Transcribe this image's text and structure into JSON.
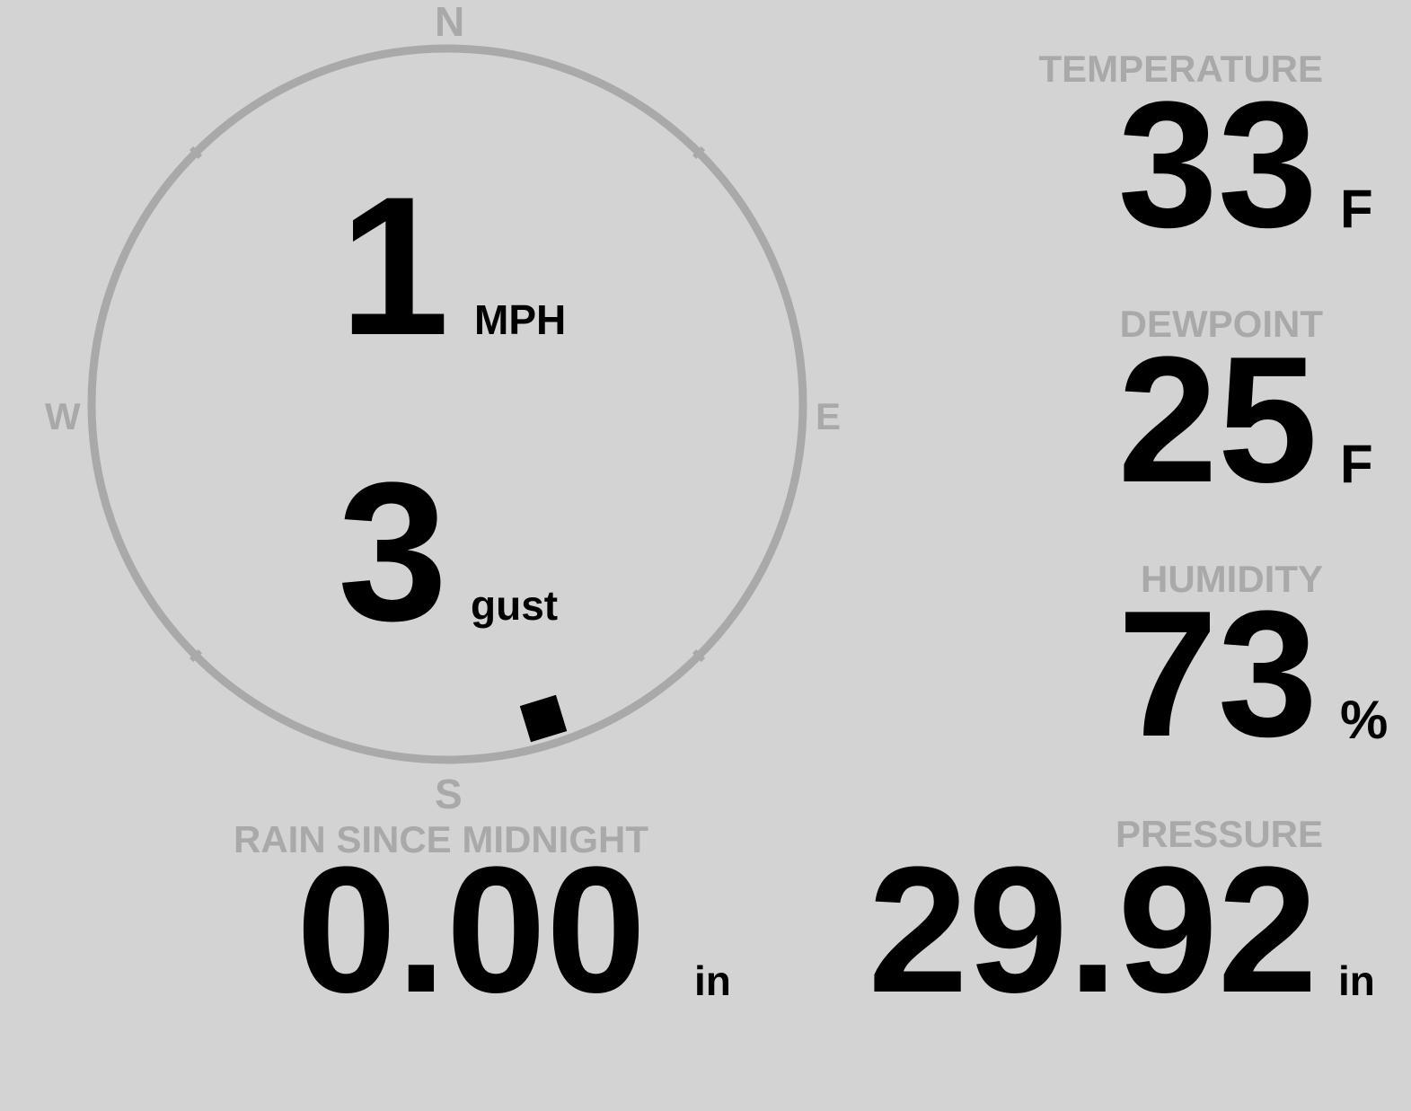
{
  "colors": {
    "background": "#d3d3d3",
    "label": "#a9a9a9",
    "value": "#000000"
  },
  "wind": {
    "compass": {
      "n": "N",
      "e": "E",
      "s": "S",
      "w": "W"
    },
    "speed": "1",
    "speed_unit": "MPH",
    "gust": "3",
    "gust_label": "gust",
    "direction_degrees": 163
  },
  "temperature": {
    "label": "TEMPERATURE",
    "value": "33",
    "unit": "F"
  },
  "dewpoint": {
    "label": "DEWPOINT",
    "value": "25",
    "unit": "F"
  },
  "humidity": {
    "label": "HUMIDITY",
    "value": "73",
    "unit": "%"
  },
  "pressure": {
    "label": "PRESSURE",
    "value": "29.92",
    "unit": "in"
  },
  "rain": {
    "label": "RAIN SINCE MIDNIGHT",
    "value": "0.00",
    "unit": "in"
  }
}
